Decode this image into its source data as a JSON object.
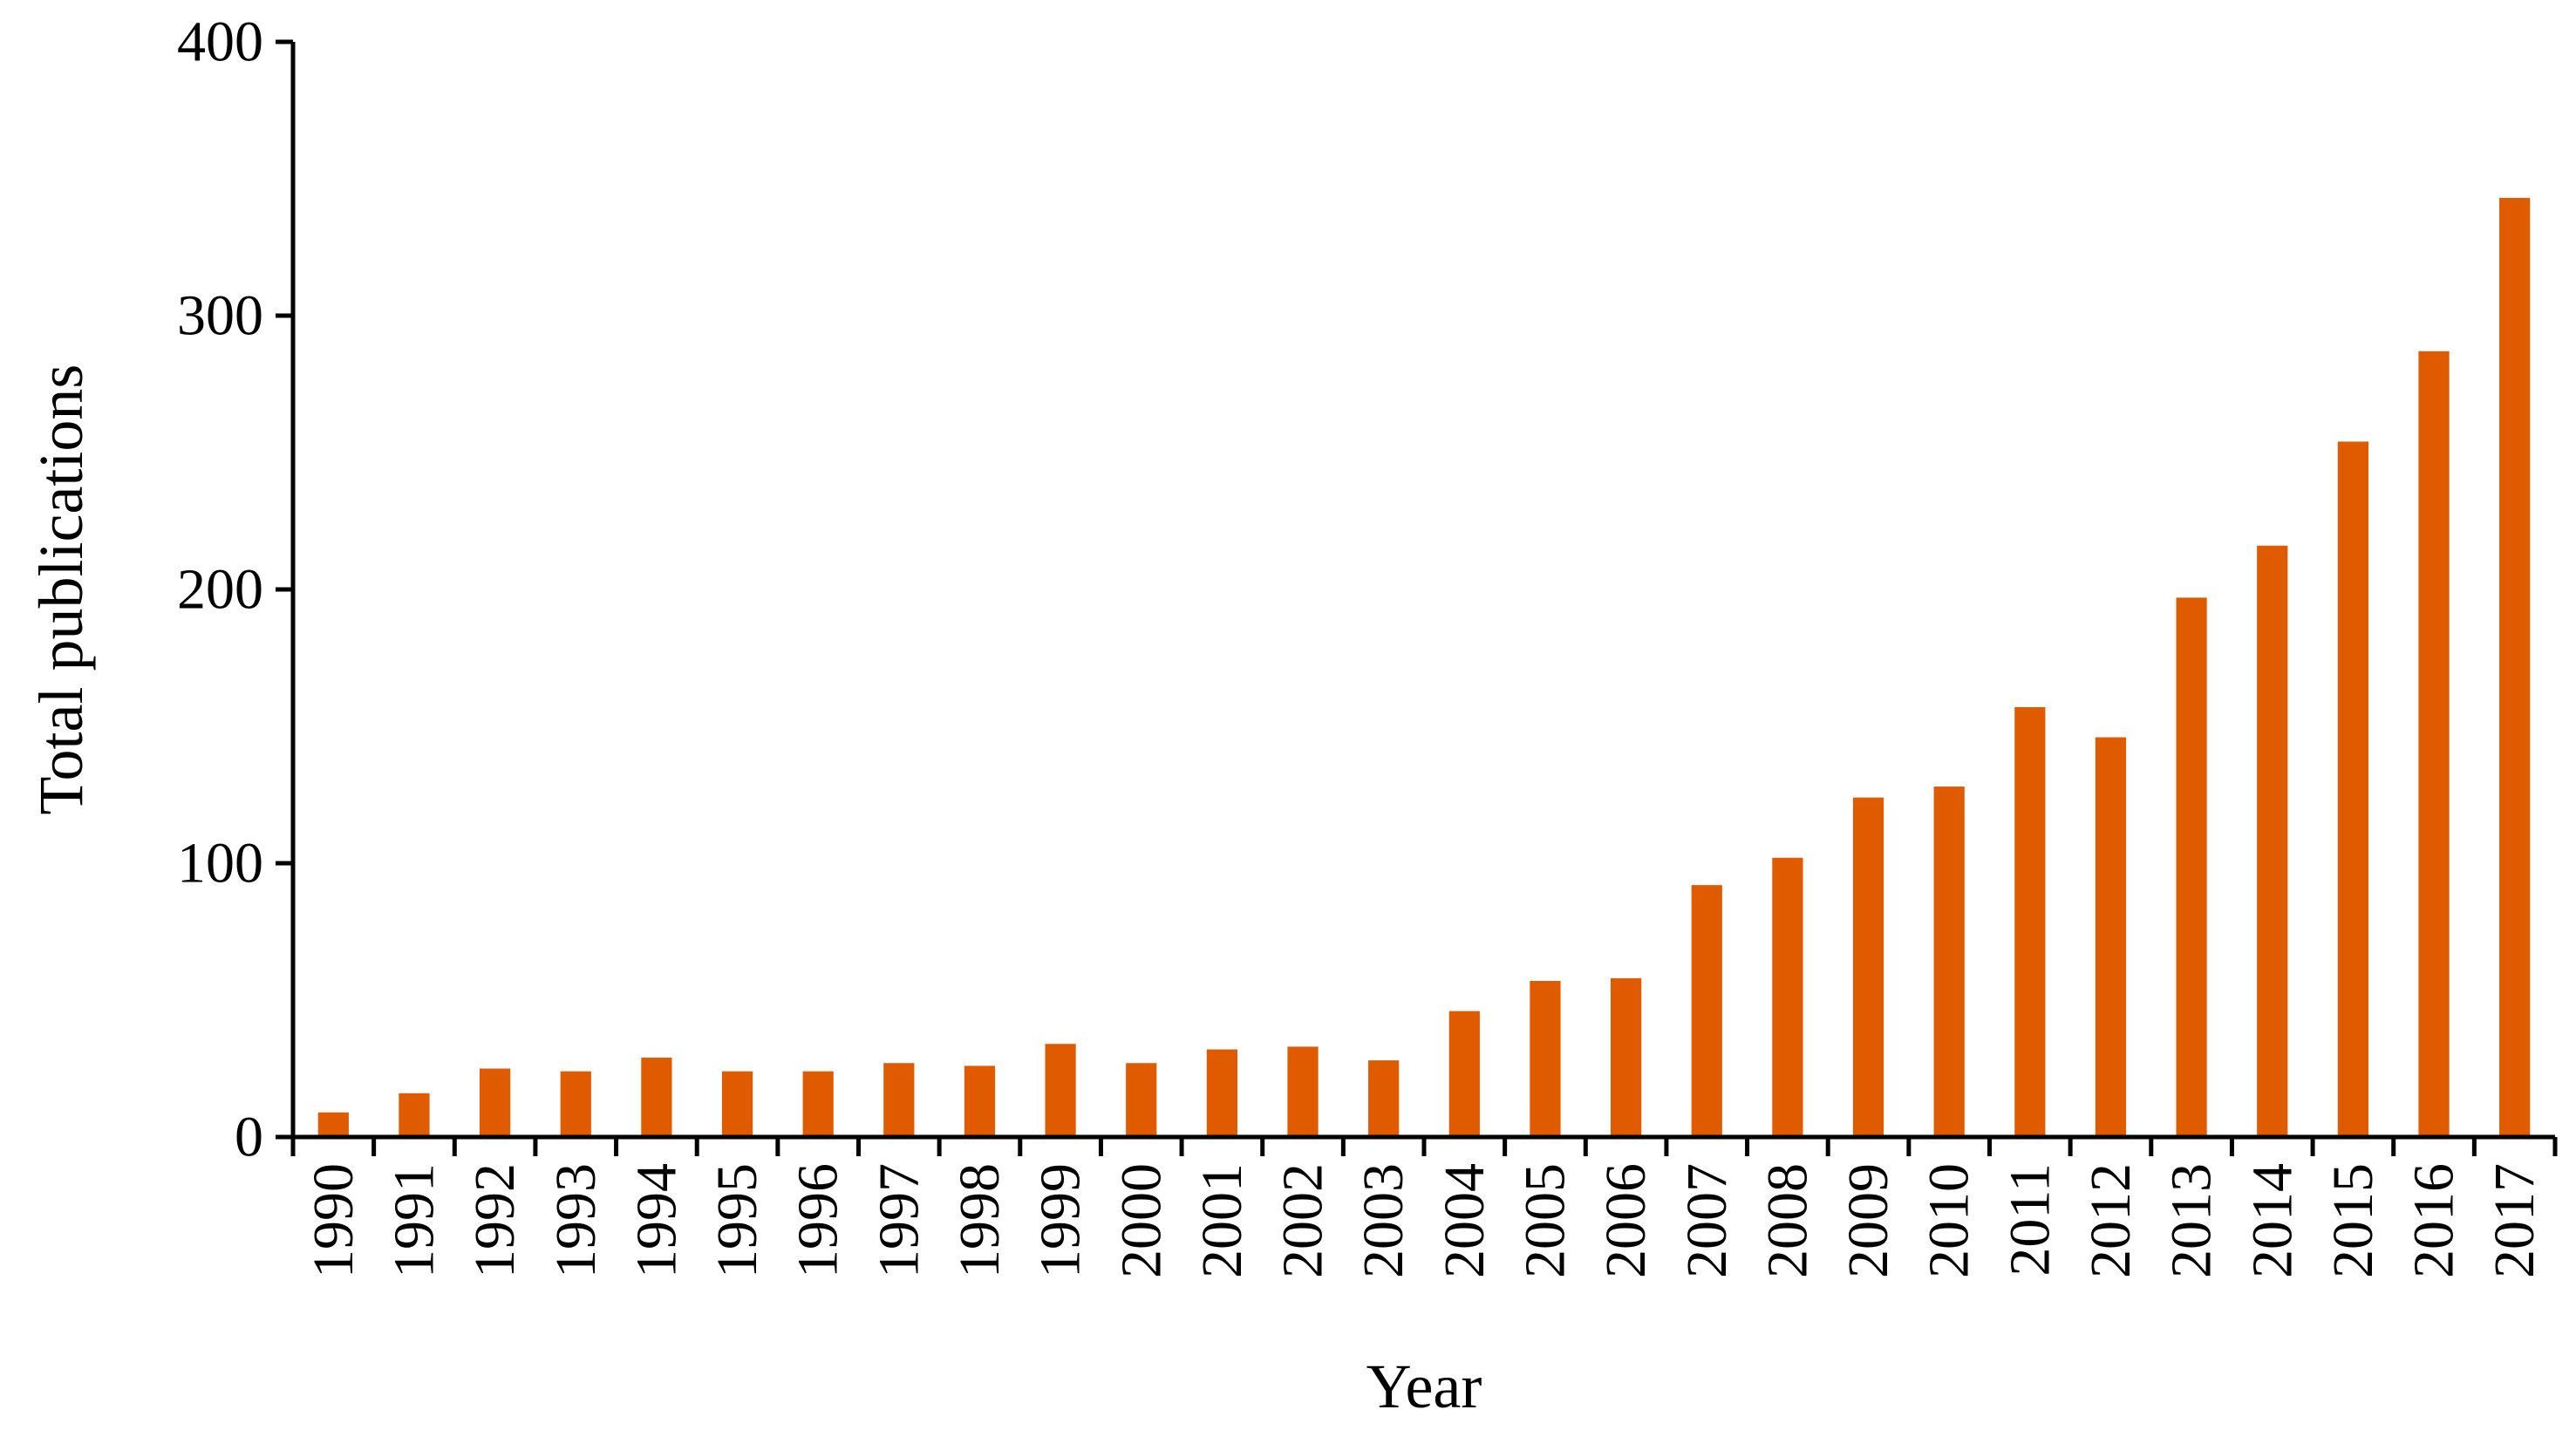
{
  "chart_data": {
    "type": "bar",
    "title": "",
    "xlabel": "Year",
    "ylabel": "Total publications",
    "ylim": [
      0,
      400
    ],
    "yticks": [
      0,
      100,
      200,
      300,
      400
    ],
    "grid": false,
    "legend": "none",
    "bar_color": "#E05A00",
    "categories": [
      "1990",
      "1991",
      "1992",
      "1993",
      "1994",
      "1995",
      "1996",
      "1997",
      "1998",
      "1999",
      "2000",
      "2001",
      "2002",
      "2003",
      "2004",
      "2005",
      "2006",
      "2007",
      "2008",
      "2009",
      "2010",
      "2011",
      "2012",
      "2013",
      "2014",
      "2015",
      "2016",
      "2017"
    ],
    "values": [
      9,
      16,
      25,
      24,
      29,
      24,
      24,
      27,
      26,
      34,
      27,
      32,
      33,
      28,
      46,
      57,
      58,
      92,
      102,
      124,
      128,
      157,
      146,
      197,
      216,
      254,
      287,
      343
    ]
  }
}
